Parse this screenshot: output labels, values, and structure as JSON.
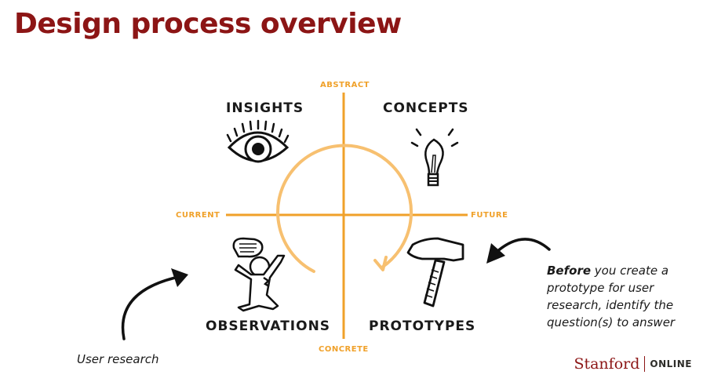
{
  "slide": {
    "title": "Design process overview"
  },
  "diagram": {
    "axis_labels": {
      "top": "ABSTRACT",
      "bottom": "CONCRETE",
      "left": "CURRENT",
      "right": "FUTURE"
    },
    "quadrants": {
      "top_left": "INSIGHTS",
      "top_right": "CONCEPTS",
      "bottom_left": "OBSERVATIONS",
      "bottom_right": "PROTOTYPES"
    },
    "accent_color": "#f0a12a",
    "icons": {
      "top_left": "eye-icon",
      "top_right": "lightbulb-icon",
      "bottom_left": "person-icon",
      "bottom_right": "hammer-icon"
    }
  },
  "annotations": {
    "left_note": "User research",
    "right_note": {
      "bold": "Before",
      "line1_rest": " you create a",
      "line2": "prototype for user",
      "line3": "research, identify the",
      "line4": "question(s) to answer"
    }
  },
  "branding": {
    "name": "Stanford",
    "sub": "ONLINE",
    "color": "#8c1515"
  }
}
